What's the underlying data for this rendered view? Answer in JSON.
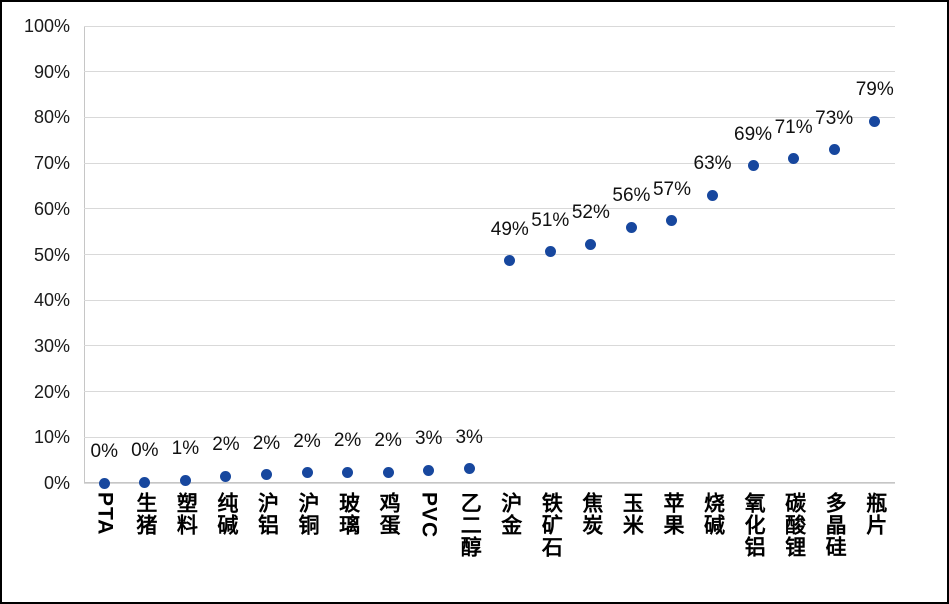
{
  "chart_data": {
    "type": "scatter",
    "title": "",
    "xlabel": "",
    "ylabel": "",
    "categories": [
      "PTA",
      "生猪",
      "塑料",
      "纯碱",
      "沪铝",
      "沪铜",
      "玻璃",
      "鸡蛋",
      "PVC",
      "乙二醇",
      "沪金",
      "铁矿石",
      "焦炭",
      "玉米",
      "苹果",
      "烧碱",
      "氧化铝",
      "碳酸锂",
      "多晶硅",
      "瓶片"
    ],
    "values": [
      0,
      0,
      1,
      2,
      2,
      2,
      2,
      2,
      3,
      3,
      49,
      51,
      52,
      56,
      57,
      63,
      69,
      71,
      73,
      79
    ],
    "point_labels": [
      "0%",
      "0%",
      "1%",
      "2%",
      "2%",
      "2%",
      "2%",
      "2%",
      "3%",
      "3%",
      "49%",
      "51%",
      "52%",
      "56%",
      "57%",
      "63%",
      "69%",
      "71%",
      "73%",
      "79%"
    ],
    "values_precise": [
      0.0,
      0.2,
      0.6,
      1.5,
      1.8,
      2.2,
      2.3,
      2.4,
      2.8,
      3.1,
      48.6,
      50.6,
      52.2,
      56.0,
      57.4,
      63.0,
      69.4,
      70.9,
      72.9,
      79.2
    ],
    "ylim": [
      0,
      100
    ],
    "ytick_step": 10,
    "ytick_labels": [
      "0%",
      "10%",
      "20%",
      "30%",
      "40%",
      "50%",
      "60%",
      "70%",
      "80%",
      "90%",
      "100%"
    ],
    "grid": true,
    "legend": "none",
    "colors": {
      "marker": "#17479e",
      "gridline": "#d9d9d9",
      "axis_line": "#c6c6c6",
      "label_text": "#111111",
      "frame_border": "#000000",
      "background": "#ffffff"
    }
  }
}
